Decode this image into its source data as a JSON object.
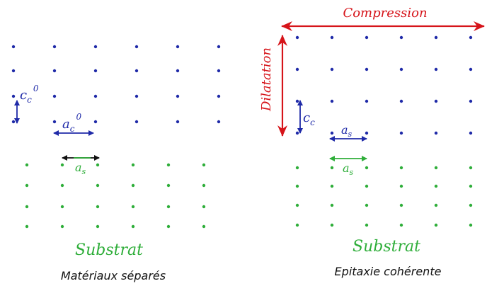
{
  "colors": {
    "film": "#1f2aa8",
    "substrate": "#2fae3a",
    "strain": "#d6141a",
    "black": "#111111"
  },
  "left_panel": {
    "symbols": {
      "c_base": "c",
      "c_sub": "c",
      "c_sup": "0",
      "a_base": "a",
      "a_sub": "c",
      "a_sup": "0",
      "as_base": "a",
      "as_sub": "s"
    },
    "substrate_label": "Substrat",
    "caption": "Matériaux séparés"
  },
  "right_panel": {
    "compression_label": "Compression",
    "dilatation_label": "Dilatation",
    "symbols": {
      "c_base": "c",
      "c_sub": "c",
      "as1_base": "a",
      "as1_sub": "s",
      "as2_base": "a",
      "as2_sub": "s"
    },
    "substrate_label": "Substrat",
    "caption": "Epitaxie cohérente"
  }
}
